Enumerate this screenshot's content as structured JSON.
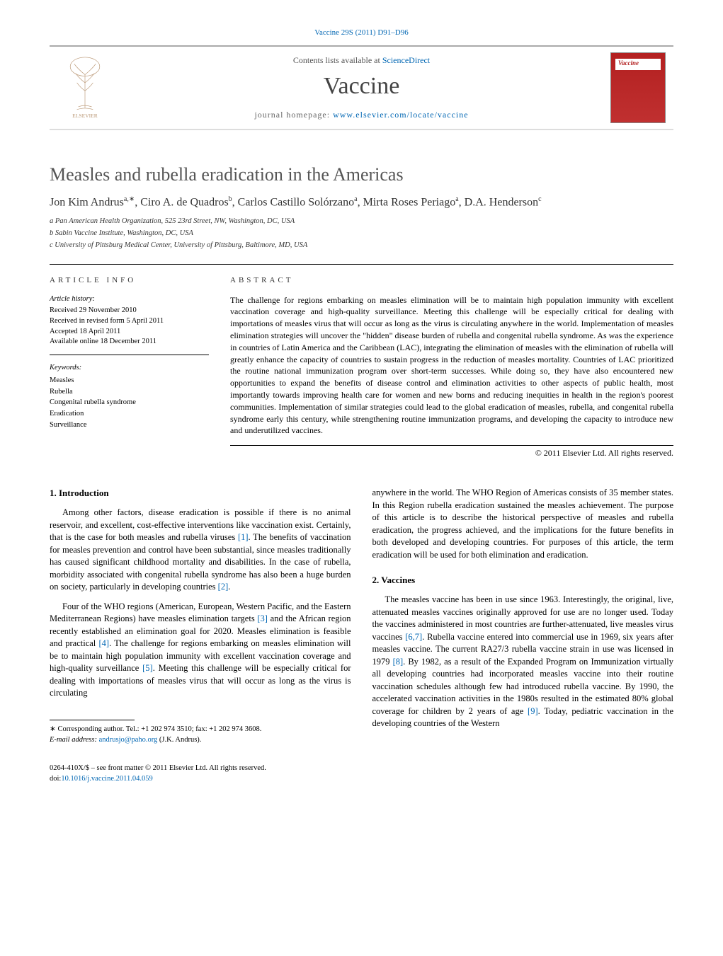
{
  "running_head": "Vaccine 29S (2011) D91–D96",
  "sd_bar": {
    "contents_prefix": "Contents lists available at ",
    "contents_link": "ScienceDirect",
    "journal": "Vaccine",
    "homepage_prefix": "journal homepage: ",
    "homepage_url": "www.elsevier.com/locate/vaccine",
    "cover_label": "Vaccine"
  },
  "title": "Measles and rubella eradication in the Americas",
  "authors_html": "Jon Kim Andrus<sup>a,∗</sup>, Ciro A. de Quadros<sup>b</sup>, Carlos Castillo Solórzano<sup>a</sup>, Mirta Roses Periago<sup>a</sup>, D.A. Henderson<sup>c</sup>",
  "affiliations": [
    "a Pan American Health Organization, 525 23rd Street, NW, Washington, DC, USA",
    "b Sabin Vaccine Institute, Washington, DC, USA",
    "c University of Pittsburg Medical Center, University of Pittsburg, Baltimore, MD, USA"
  ],
  "article_info": {
    "head": "ARTICLE INFO",
    "history_label": "Article history:",
    "history": [
      "Received 29 November 2010",
      "Received in revised form 5 April 2011",
      "Accepted 18 April 2011",
      "Available online 18 December 2011"
    ],
    "keywords_label": "Keywords:",
    "keywords": [
      "Measles",
      "Rubella",
      "Congenital rubella syndrome",
      "Eradication",
      "Surveillance"
    ]
  },
  "abstract": {
    "head": "ABSTRACT",
    "text": "The challenge for regions embarking on measles elimination will be to maintain high population immunity with excellent vaccination coverage and high-quality surveillance. Meeting this challenge will be especially critical for dealing with importations of measles virus that will occur as long as the virus is circulating anywhere in the world. Implementation of measles elimination strategies will uncover the \"hidden\" disease burden of rubella and congenital rubella syndrome. As was the experience in countries of Latin America and the Caribbean (LAC), integrating the elimination of measles with the elimination of rubella will greatly enhance the capacity of countries to sustain progress in the reduction of measles mortality. Countries of LAC prioritized the routine national immunization program over short-term successes. While doing so, they have also encountered new opportunities to expand the benefits of disease control and elimination activities to other aspects of public health, most importantly towards improving health care for women and new borns and reducing inequities in health in the region's poorest communities. Implementation of similar strategies could lead to the global eradication of measles, rubella, and congenital rubella syndrome early this century, while strengthening routine immunization programs, and developing the capacity to introduce new and underutilized vaccines.",
    "copyright": "© 2011 Elsevier Ltd. All rights reserved."
  },
  "sections": {
    "intro_head": "1.  Introduction",
    "intro_p1": "Among other factors, disease eradication is possible if there is no animal reservoir, and excellent, cost-effective interventions like vaccination exist. Certainly, that is the case for both measles and rubella viruses [1]. The benefits of vaccination for measles prevention and control have been substantial, since measles traditionally has caused significant childhood mortality and disabilities. In the case of rubella, morbidity associated with congenital rubella syndrome has also been a huge burden on society, particularly in developing countries [2].",
    "intro_p2": "Four of the WHO regions (American, European, Western Pacific, and the Eastern Mediterranean Regions) have measles elimination targets [3] and the African region recently established an elimination goal for 2020. Measles elimination is feasible and practical [4]. The challenge for regions embarking on measles elimination will be to maintain high population immunity with excellent vaccination coverage and high-quality surveillance [5]. Meeting this challenge will be especially critical for dealing with importations of measles virus that will occur as long as the virus is circulating",
    "intro_p3_right": "anywhere in the world. The WHO Region of Americas consists of 35 member states. In this Region rubella eradication sustained the measles achievement. The purpose of this article is to describe the historical perspective of measles and rubella eradication, the progress achieved, and the implications for the future benefits in both developed and developing countries. For purposes of this article, the term eradication will be used for both elimination and eradication.",
    "vaccines_head": "2.  Vaccines",
    "vaccines_p1": "The measles vaccine has been in use since 1963. Interestingly, the original, live, attenuated measles vaccines originally approved for use are no longer used. Today the vaccines administered in most countries are further-attenuated, live measles virus vaccines [6,7]. Rubella vaccine entered into commercial use in 1969, six years after measles vaccine. The current RA27/3 rubella vaccine strain in use was licensed in 1979 [8]. By 1982, as a result of the Expanded Program on Immunization virtually all developing countries had incorporated measles vaccine into their routine vaccination schedules although few had introduced rubella vaccine. By 1990, the accelerated vaccination activities in the 1980s resulted in the estimated 80% global coverage for children by 2 years of age [9]. Today, pediatric vaccination in the developing countries of the Western"
  },
  "footnote": {
    "marker": "∗",
    "text": "Corresponding author. Tel.: +1 202 974 3510; fax: +1 202 974 3608.",
    "email_label": "E-mail address:",
    "email": "andrusjo@paho.org",
    "email_who": "(J.K. Andrus)."
  },
  "bottom": {
    "copyright": "0264-410X/$ – see front matter © 2011 Elsevier Ltd. All rights reserved.",
    "doi_prefix": "doi:",
    "doi": "10.1016/j.vaccine.2011.04.059"
  },
  "colors": {
    "link": "#0066b3",
    "cover_bg": "#b32020"
  }
}
